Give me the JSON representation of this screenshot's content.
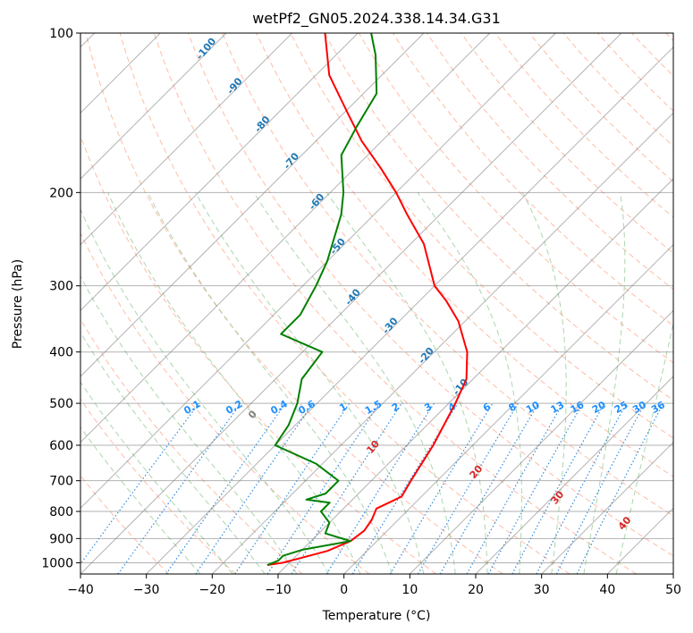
{
  "chart_data": {
    "type": "skew-t",
    "title": "wetPf2_GN05.2024.338.14.34.G31",
    "xlabel": "Temperature (°C)",
    "ylabel": "Pressure (hPa)",
    "xlim": [
      -40,
      50
    ],
    "ylim": [
      1050,
      100
    ],
    "x_ticks": [
      -40,
      -30,
      -20,
      -10,
      0,
      10,
      20,
      30,
      40,
      50
    ],
    "x_tick_labels": [
      "−40",
      "−30",
      "−20",
      "−10",
      "0",
      "10",
      "20",
      "30",
      "40",
      "50"
    ],
    "y_ticks": [
      1000,
      900,
      800,
      700,
      600,
      500,
      400,
      300,
      200,
      100
    ],
    "y_tick_labels": [
      "1000",
      "900",
      "800",
      "700",
      "600",
      "500",
      "400",
      "300",
      "200",
      "100"
    ],
    "grid": true,
    "mixing_ratio_labels": [
      "0.1",
      "0.2",
      "0.4",
      "0.6",
      "1",
      "1.5",
      "2",
      "3",
      "4",
      "6",
      "8",
      "10",
      "13",
      "16",
      "20",
      "25",
      "30",
      "36"
    ],
    "dry_adiabat_labels": [
      "-100",
      "-90",
      "-80",
      "-70",
      "-60",
      "-50",
      "-40",
      "-30",
      "-20",
      "-10"
    ],
    "moist_adiabat_labels": [
      "0",
      "10",
      "20",
      "30",
      "40"
    ],
    "temperature_profile": [
      {
        "p": 1010,
        "t": -13
      },
      {
        "p": 1000,
        "t": -11
      },
      {
        "p": 980,
        "t": -9
      },
      {
        "p": 950,
        "t": -6
      },
      {
        "p": 910,
        "t": -4
      },
      {
        "p": 870,
        "t": -3.5
      },
      {
        "p": 830,
        "t": -4
      },
      {
        "p": 790,
        "t": -5
      },
      {
        "p": 770,
        "t": -4
      },
      {
        "p": 750,
        "t": -3
      },
      {
        "p": 700,
        "t": -4
      },
      {
        "p": 600,
        "t": -6
      },
      {
        "p": 500,
        "t": -9
      },
      {
        "p": 450,
        "t": -11
      },
      {
        "p": 400,
        "t": -15
      },
      {
        "p": 350,
        "t": -21
      },
      {
        "p": 320,
        "t": -26
      },
      {
        "p": 300,
        "t": -30
      },
      {
        "p": 250,
        "t": -38
      },
      {
        "p": 220,
        "t": -45
      },
      {
        "p": 200,
        "t": -50
      },
      {
        "p": 180,
        "t": -56
      },
      {
        "p": 160,
        "t": -63
      },
      {
        "p": 140,
        "t": -70
      },
      {
        "p": 120,
        "t": -78
      },
      {
        "p": 100,
        "t": -85
      }
    ],
    "dewpoint_profile": [
      {
        "p": 1010,
        "t": -13
      },
      {
        "p": 990,
        "t": -12
      },
      {
        "p": 970,
        "t": -12
      },
      {
        "p": 945,
        "t": -10
      },
      {
        "p": 910,
        "t": -4
      },
      {
        "p": 880,
        "t": -9
      },
      {
        "p": 840,
        "t": -10
      },
      {
        "p": 800,
        "t": -13
      },
      {
        "p": 770,
        "t": -13
      },
      {
        "p": 760,
        "t": -17
      },
      {
        "p": 740,
        "t": -15
      },
      {
        "p": 700,
        "t": -15
      },
      {
        "p": 650,
        "t": -21
      },
      {
        "p": 600,
        "t": -30
      },
      {
        "p": 550,
        "t": -31
      },
      {
        "p": 500,
        "t": -33
      },
      {
        "p": 450,
        "t": -36
      },
      {
        "p": 400,
        "t": -37
      },
      {
        "p": 370,
        "t": -46
      },
      {
        "p": 340,
        "t": -46
      },
      {
        "p": 300,
        "t": -48
      },
      {
        "p": 270,
        "t": -50
      },
      {
        "p": 220,
        "t": -55
      },
      {
        "p": 200,
        "t": -58
      },
      {
        "p": 170,
        "t": -64
      },
      {
        "p": 150,
        "t": -66
      },
      {
        "p": 130,
        "t": -68
      },
      {
        "p": 110,
        "t": -74
      },
      {
        "p": 100,
        "t": -78
      }
    ],
    "colors": {
      "temperature": "#ff0000",
      "dewpoint": "#008000",
      "dry_adiabats": "#ff9f80",
      "moist_adiabats": "#90c890",
      "mixing_ratio": "#1e7fd8",
      "isotherms": "#808080",
      "dry_adiabat_labels": "#1f77b4",
      "mixing_ratio_labels": "#1e90ff",
      "moist_adiabat_labels": "#d62728",
      "moist_adiabat_zero_label": "#808080"
    }
  }
}
